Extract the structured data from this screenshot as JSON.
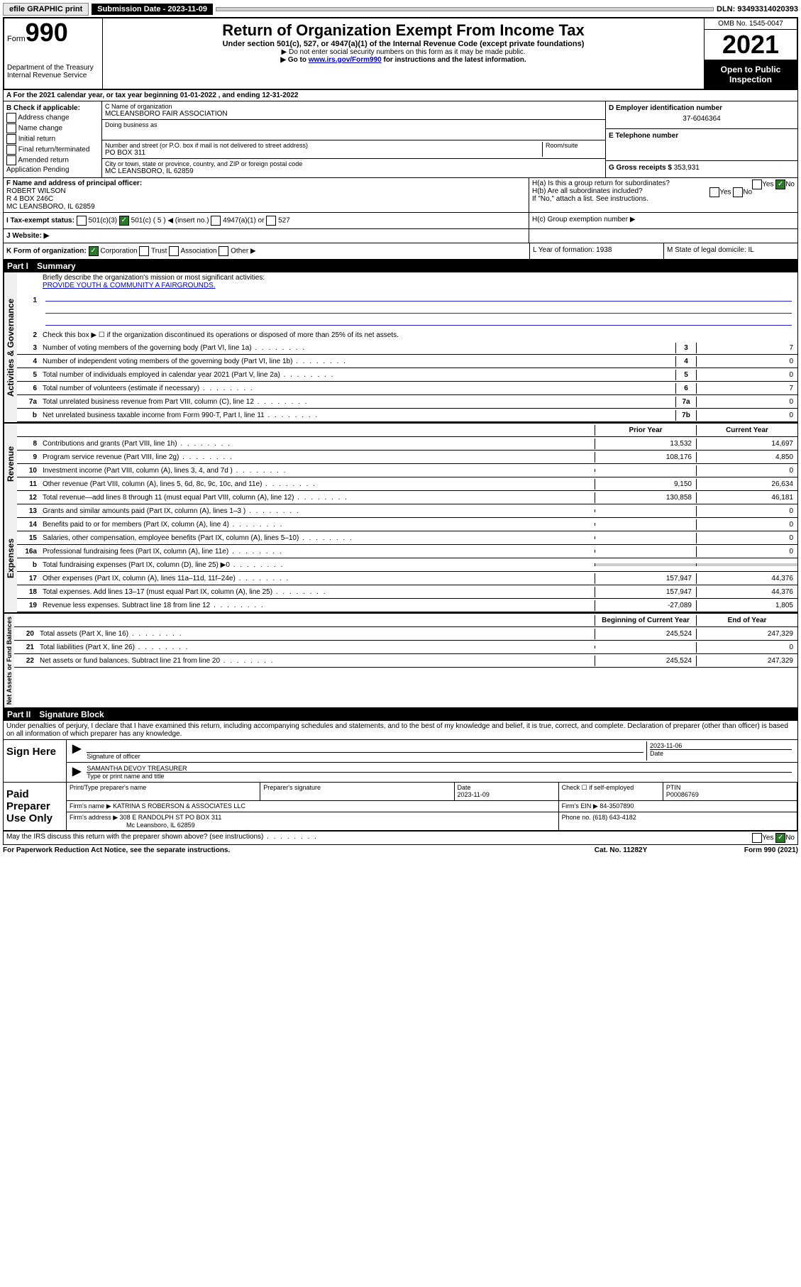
{
  "topbar": {
    "efile": "efile GRAPHIC print",
    "submission_label": "Submission Date - 2023-11-09",
    "dln": "DLN: 93493314020393"
  },
  "header": {
    "form_prefix": "Form",
    "form_number": "990",
    "dept": "Department of the Treasury",
    "irs": "Internal Revenue Service",
    "title": "Return of Organization Exempt From Income Tax",
    "sub1": "Under section 501(c), 527, or 4947(a)(1) of the Internal Revenue Code (except private foundations)",
    "sub2": "▶ Do not enter social security numbers on this form as it may be made public.",
    "sub3_prefix": "▶ Go to ",
    "sub3_link": "www.irs.gov/Form990",
    "sub3_suffix": " for instructions and the latest information.",
    "omb": "OMB No. 1545-0047",
    "year": "2021",
    "open": "Open to Public Inspection"
  },
  "rowA": "A For the 2021 calendar year, or tax year beginning 01-01-2022   , and ending 12-31-2022",
  "sectionB": {
    "label": "B Check if applicable:",
    "opts": [
      "Address change",
      "Name change",
      "Initial return",
      "Final return/terminated",
      "Amended return",
      "Application Pending"
    ]
  },
  "sectionC": {
    "name_label": "C Name of organization",
    "name": "MCLEANSBORO FAIR ASSOCIATION",
    "dba_label": "Doing business as",
    "addr_label": "Number and street (or P.O. box if mail is not delivered to street address)",
    "room_label": "Room/suite",
    "addr": "PO BOX 311",
    "city_label": "City or town, state or province, country, and ZIP or foreign postal code",
    "city": "MC LEANSBORO, IL  62859"
  },
  "sectionD": {
    "d_label": "D Employer identification number",
    "d_val": "37-6046364",
    "e_label": "E Telephone number",
    "g_label": "G Gross receipts $",
    "g_val": "353,931"
  },
  "sectionF": {
    "label": "F  Name and address of principal officer:",
    "name": "ROBERT WILSON",
    "addr1": "R 4 BOX 246C",
    "addr2": "MC LEANSBORO, IL  62859"
  },
  "sectionH": {
    "ha": "H(a)  Is this a group return for subordinates?",
    "hb": "H(b)  Are all subordinates included?",
    "hb_note": "If \"No,\" attach a list. See instructions.",
    "hc": "H(c)  Group exemption number ▶",
    "yes": "Yes",
    "no": "No"
  },
  "rowI": {
    "label": "I   Tax-exempt status:",
    "o1": "501(c)(3)",
    "o2": "501(c) ( 5 ) ◀ (insert no.)",
    "o3": "4947(a)(1) or",
    "o4": "527"
  },
  "rowJ": "J   Website: ▶",
  "rowK": {
    "label": "K Form of organization:",
    "o1": "Corporation",
    "o2": "Trust",
    "o3": "Association",
    "o4": "Other ▶",
    "l": "L Year of formation: 1938",
    "m": "M State of legal domicile: IL"
  },
  "part1": {
    "label": "Part I",
    "title": "Summary",
    "q1": "Briefly describe the organization's mission or most significant activities:",
    "mission": "PROVIDE YOUTH & COMMUNITY A FAIRGROUNDS.",
    "q2": "Check this box ▶ ☐  if the organization discontinued its operations or disposed of more than 25% of its net assets.",
    "governance_label": "Activities & Governance",
    "revenue_label": "Revenue",
    "expenses_label": "Expenses",
    "netassets_label": "Net Assets or Fund Balances",
    "prior_year": "Prior Year",
    "current_year": "Current Year",
    "beg_year": "Beginning of Current Year",
    "end_year": "End of Year",
    "rows_gov": [
      {
        "n": "3",
        "d": "Number of voting members of the governing body (Part VI, line 1a)",
        "box": "3",
        "v": "7"
      },
      {
        "n": "4",
        "d": "Number of independent voting members of the governing body (Part VI, line 1b)",
        "box": "4",
        "v": "0"
      },
      {
        "n": "5",
        "d": "Total number of individuals employed in calendar year 2021 (Part V, line 2a)",
        "box": "5",
        "v": "0"
      },
      {
        "n": "6",
        "d": "Total number of volunteers (estimate if necessary)",
        "box": "6",
        "v": "7"
      },
      {
        "n": "7a",
        "d": "Total unrelated business revenue from Part VIII, column (C), line 12",
        "box": "7a",
        "v": "0"
      },
      {
        "n": "b",
        "d": "Net unrelated business taxable income from Form 990-T, Part I, line 11",
        "box": "7b",
        "v": "0"
      }
    ],
    "rows_rev": [
      {
        "n": "8",
        "d": "Contributions and grants (Part VIII, line 1h)",
        "p": "13,532",
        "c": "14,697"
      },
      {
        "n": "9",
        "d": "Program service revenue (Part VIII, line 2g)",
        "p": "108,176",
        "c": "4,850"
      },
      {
        "n": "10",
        "d": "Investment income (Part VIII, column (A), lines 3, 4, and 7d )",
        "p": "",
        "c": "0"
      },
      {
        "n": "11",
        "d": "Other revenue (Part VIII, column (A), lines 5, 6d, 8c, 9c, 10c, and 11e)",
        "p": "9,150",
        "c": "26,634"
      },
      {
        "n": "12",
        "d": "Total revenue—add lines 8 through 11 (must equal Part VIII, column (A), line 12)",
        "p": "130,858",
        "c": "46,181"
      }
    ],
    "rows_exp": [
      {
        "n": "13",
        "d": "Grants and similar amounts paid (Part IX, column (A), lines 1–3 )",
        "p": "",
        "c": "0"
      },
      {
        "n": "14",
        "d": "Benefits paid to or for members (Part IX, column (A), line 4)",
        "p": "",
        "c": "0"
      },
      {
        "n": "15",
        "d": "Salaries, other compensation, employee benefits (Part IX, column (A), lines 5–10)",
        "p": "",
        "c": "0"
      },
      {
        "n": "16a",
        "d": "Professional fundraising fees (Part IX, column (A), line 11e)",
        "p": "",
        "c": "0"
      },
      {
        "n": "b",
        "d": "Total fundraising expenses (Part IX, column (D), line 25) ▶0",
        "p": "shaded",
        "c": "shaded"
      },
      {
        "n": "17",
        "d": "Other expenses (Part IX, column (A), lines 11a–11d, 11f–24e)",
        "p": "157,947",
        "c": "44,376"
      },
      {
        "n": "18",
        "d": "Total expenses. Add lines 13–17 (must equal Part IX, column (A), line 25)",
        "p": "157,947",
        "c": "44,376"
      },
      {
        "n": "19",
        "d": "Revenue less expenses. Subtract line 18 from line 12",
        "p": "-27,089",
        "c": "1,805"
      }
    ],
    "rows_net": [
      {
        "n": "20",
        "d": "Total assets (Part X, line 16)",
        "p": "245,524",
        "c": "247,329"
      },
      {
        "n": "21",
        "d": "Total liabilities (Part X, line 26)",
        "p": "",
        "c": "0"
      },
      {
        "n": "22",
        "d": "Net assets or fund balances. Subtract line 21 from line 20",
        "p": "245,524",
        "c": "247,329"
      }
    ]
  },
  "part2": {
    "label": "Part II",
    "title": "Signature Block",
    "declare": "Under penalties of perjury, I declare that I have examined this return, including accompanying schedules and statements, and to the best of my knowledge and belief, it is true, correct, and complete. Declaration of preparer (other than officer) is based on all information of which preparer has any knowledge.",
    "sign_here": "Sign Here",
    "sig_officer": "Signature of officer",
    "sig_date": "2023-11-06",
    "date_label": "Date",
    "officer_name": "SAMANTHA DEVOY TREASURER",
    "type_name": "Type or print name and title",
    "paid_label": "Paid Preparer Use Only",
    "h1": "Print/Type preparer's name",
    "h2": "Preparer's signature",
    "h3": "Date",
    "h3v": "2023-11-09",
    "h4": "Check ☐ if self-employed",
    "h5": "PTIN",
    "h5v": "P00086769",
    "firm_name_l": "Firm's name    ▶",
    "firm_name": "KATRINA S ROBERSON & ASSOCIATES LLC",
    "firm_ein_l": "Firm's EIN ▶",
    "firm_ein": "84-3507890",
    "firm_addr_l": "Firm's address ▶",
    "firm_addr1": "308 E RANDOLPH ST PO BOX 311",
    "firm_addr2": "Mc Leansboro, IL  62859",
    "phone_l": "Phone no.",
    "phone": "(618) 643-4182",
    "discuss": "May the IRS discuss this return with the preparer shown above? (see instructions)"
  },
  "footer": {
    "paperwork": "For Paperwork Reduction Act Notice, see the separate instructions.",
    "cat": "Cat. No. 11282Y",
    "form": "Form 990 (2021)"
  }
}
